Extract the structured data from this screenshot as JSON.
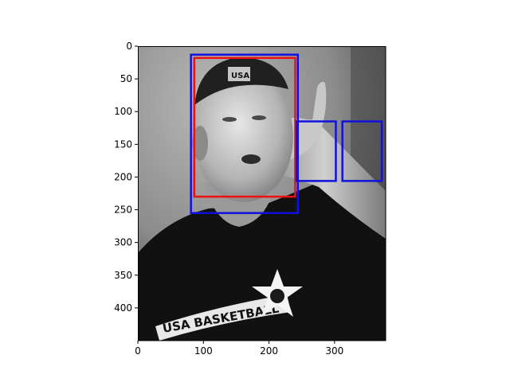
{
  "chart_data": {
    "type": "image",
    "image_description_colorspace": "grayscale",
    "xlim": [
      0,
      378
    ],
    "ylim": [
      450,
      0
    ],
    "y_inverted": true,
    "x_ticks": [
      0,
      100,
      200,
      300
    ],
    "y_ticks": [
      0,
      50,
      100,
      150,
      200,
      250,
      300,
      350,
      400
    ],
    "image_text": [
      "USA",
      "USA BASKETBALL"
    ],
    "boxes": [
      {
        "x0": 86,
        "y0": 18,
        "x1": 240,
        "y1": 230,
        "color": "#ee1111"
      },
      {
        "x0": 81,
        "y0": 13,
        "x1": 244,
        "y1": 255,
        "color": "#1111dd"
      },
      {
        "x0": 242,
        "y0": 115,
        "x1": 302,
        "y1": 206,
        "color": "#1111dd"
      },
      {
        "x0": 312,
        "y0": 115,
        "x1": 372,
        "y1": 206,
        "color": "#1111dd"
      }
    ]
  }
}
